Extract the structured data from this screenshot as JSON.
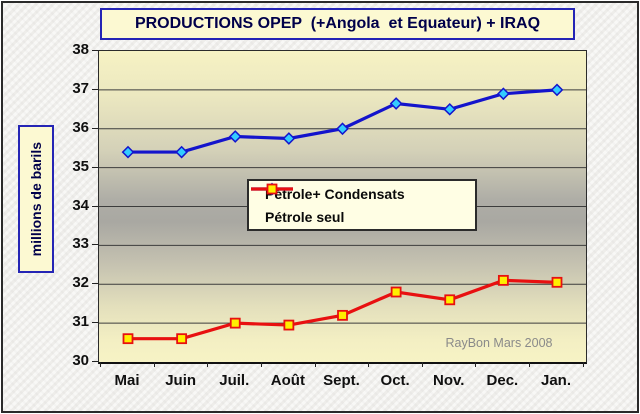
{
  "chart": {
    "title": "PRODUCTIONS OPEP  (+Angola  et Equateur) + IRAQ",
    "ylabel": "millions de barils",
    "watermark": "RayBon Mars 2008"
  },
  "chart_data": {
    "type": "line",
    "title": "PRODUCTIONS OPEP  (+Angola  et Equateur) + IRAQ",
    "ylabel": "millions de barils",
    "xlabel": "",
    "categories": [
      "Mai",
      "Juin",
      "Juil.",
      "Août",
      "Sept.",
      "Oct.",
      "Nov.",
      "Dec.",
      "Jan."
    ],
    "series": [
      {
        "name": "Pétrole+ Condensats",
        "color": "#1414cc",
        "marker": "diamond",
        "marker_fill": "#33ccff",
        "values": [
          35.4,
          35.4,
          35.8,
          35.75,
          36.0,
          36.65,
          36.5,
          36.9,
          37.0
        ]
      },
      {
        "name": "Pétrole seul",
        "color": "#e81010",
        "marker": "square",
        "marker_fill": "#ffee00",
        "values": [
          30.6,
          30.6,
          31.0,
          30.95,
          31.2,
          31.8,
          31.6,
          32.1,
          32.05
        ]
      }
    ],
    "ylim": [
      30,
      38
    ],
    "yticks": [
      30,
      31,
      32,
      33,
      34,
      35,
      36,
      37,
      38
    ],
    "grid": true,
    "legend_position": "center",
    "annotations": [
      "RayBon Mars 2008"
    ],
    "colors": {
      "plot_top_bottom": "#f6f2c3",
      "plot_middle": "#a9a8a2",
      "box_fill": "#fcf9d2",
      "box_border": "#2525b5",
      "legend_fill": "#fffee4",
      "outer_background": "#f1f0ed"
    }
  }
}
